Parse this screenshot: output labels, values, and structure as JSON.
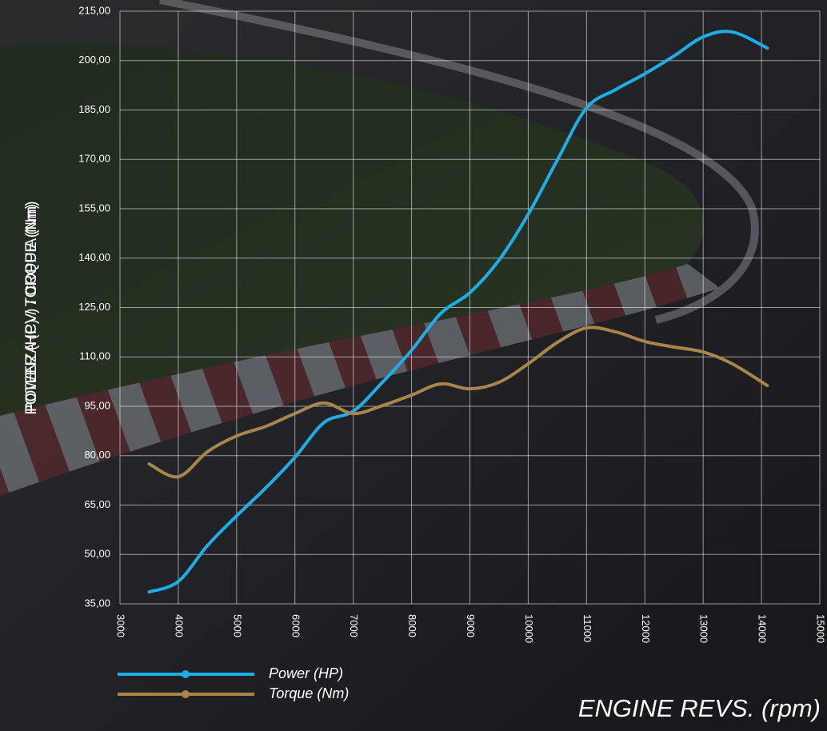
{
  "chart_data": {
    "type": "line",
    "y_labels": [
      "POTENZA (CV) / COPPIA (Nm)",
      "POWER (HP) / TORQUE (Nm)"
    ],
    "x_label": "ENGINE REVS. (rpm)",
    "x": [
      3500,
      4000,
      4500,
      5000,
      5500,
      6000,
      6500,
      7000,
      7500,
      8000,
      8500,
      9000,
      9500,
      10000,
      10500,
      11000,
      11500,
      12000,
      12500,
      13000,
      13500,
      14100
    ],
    "series": [
      {
        "name": "Power (HP)",
        "color": "#1eaee6",
        "values": [
          38.6,
          41.8,
          52.7,
          61.7,
          70.2,
          79.5,
          90.1,
          93.5,
          102.3,
          112.0,
          123.2,
          129.5,
          139.4,
          153.3,
          169.8,
          185.6,
          191.2,
          196.0,
          201.4,
          207.2,
          208.7,
          203.8
        ]
      },
      {
        "name": "Torque (Nm)",
        "color": "#a8864a",
        "values": [
          77.5,
          73.6,
          81.2,
          86.0,
          88.9,
          92.8,
          96.0,
          92.8,
          95.2,
          98.4,
          101.8,
          100.3,
          102.3,
          107.9,
          114.4,
          118.8,
          117.6,
          114.7,
          113.0,
          111.5,
          107.9,
          101.3
        ]
      }
    ],
    "xlim": [
      3000,
      15000
    ],
    "xticks": [
      3000,
      4000,
      5000,
      6000,
      7000,
      8000,
      9000,
      10000,
      11000,
      12000,
      13000,
      14000,
      15000
    ],
    "ylim": [
      35,
      215
    ],
    "yticks": [
      {
        "value": 35,
        "label": "35,00"
      },
      {
        "value": 50,
        "label": "50,00"
      },
      {
        "value": 65,
        "label": "65,00"
      },
      {
        "value": 80,
        "label": "80,00"
      },
      {
        "value": 95,
        "label": "95,00"
      },
      {
        "value": 110,
        "label": "110,00"
      },
      {
        "value": 125,
        "label": "125,00"
      },
      {
        "value": 140,
        "label": "140,00"
      },
      {
        "value": 155,
        "label": "155,00"
      },
      {
        "value": 170,
        "label": "170,00"
      },
      {
        "value": 185,
        "label": "185,00"
      },
      {
        "value": 200,
        "label": "200,00"
      },
      {
        "value": 215,
        "label": "215,00"
      }
    ],
    "grid": true
  }
}
